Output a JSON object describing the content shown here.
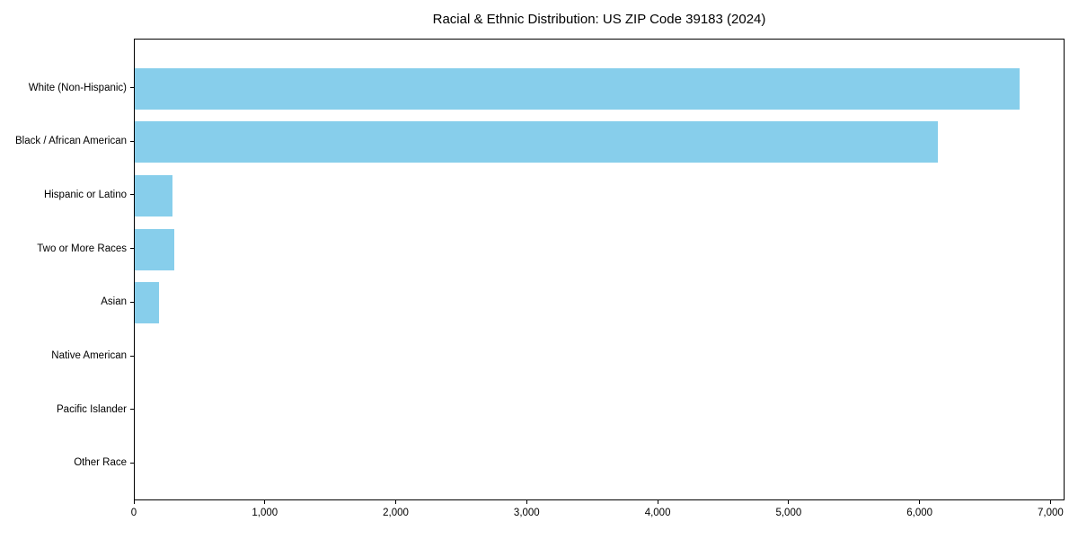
{
  "chart_data": {
    "type": "bar",
    "orientation": "horizontal",
    "title": "Racial & Ethnic Distribution: US ZIP Code 39183 (2024)",
    "categories": [
      "White (Non-Hispanic)",
      "Black / African American",
      "Hispanic or Latino",
      "Two or More Races",
      "Asian",
      "Native American",
      "Pacific Islander",
      "Other Race"
    ],
    "values": [
      6760,
      6135,
      285,
      300,
      185,
      0,
      0,
      0
    ],
    "xlabel": "",
    "ylabel": "",
    "xlim": [
      0,
      7107
    ],
    "xticks": [
      0,
      1000,
      2000,
      3000,
      4000,
      5000,
      6000,
      7000
    ],
    "xtick_labels": [
      "0",
      "1,000",
      "2,000",
      "3,000",
      "4,000",
      "5,000",
      "6,000",
      "7,000"
    ],
    "grid": false,
    "legend": null,
    "bar_color": "#87CEEB"
  },
  "colors": {
    "background": "#ffffff",
    "bar": "#87CEEB",
    "axis": "#000000",
    "text": "#000000"
  }
}
